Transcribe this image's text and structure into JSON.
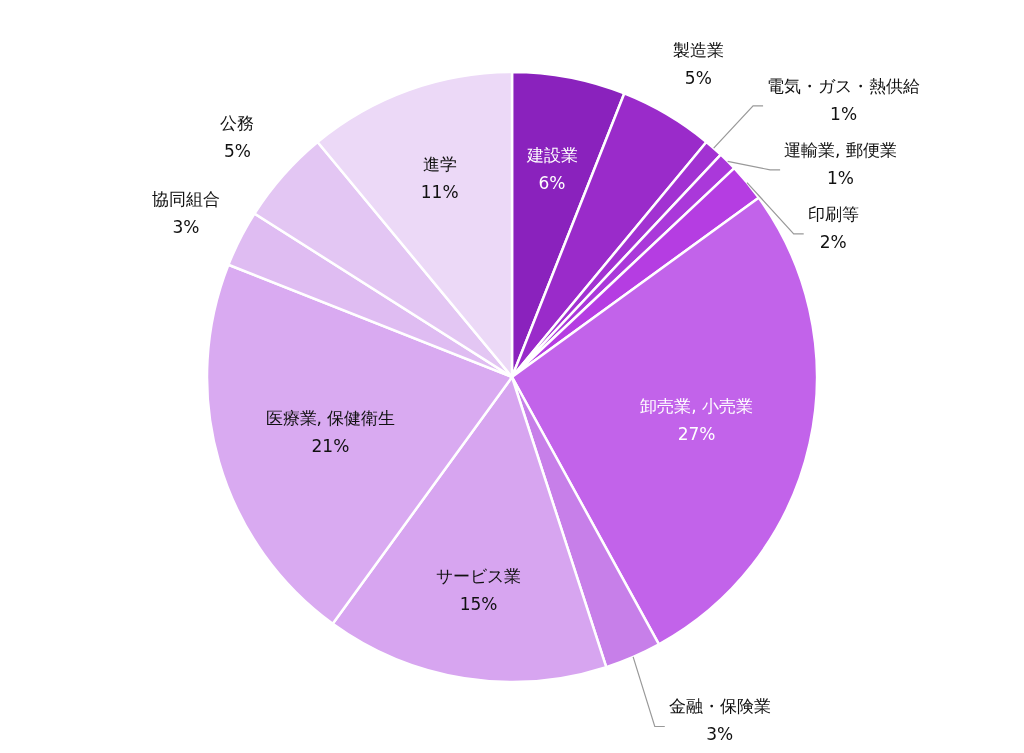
{
  "chart_data": {
    "type": "pie",
    "categories": [
      "建設業",
      "製造業",
      "電気・ガス・熱供給",
      "運輸業, 郵便業",
      "印刷等",
      "卸売業, 小売業",
      "金融・保険業",
      "サービス業",
      "医療業, 保健衛生",
      "協同組合",
      "公務",
      "進学"
    ],
    "values": [
      6,
      5,
      1,
      1,
      2,
      27,
      3,
      15,
      21,
      3,
      5,
      11
    ],
    "value_labels": [
      "6%",
      "5%",
      "1%",
      "1%",
      "2%",
      "27%",
      "3%",
      "15%",
      "21%",
      "3%",
      "5%",
      "11%"
    ],
    "colors": [
      "#8a22bd",
      "#9a2bca",
      "#a232d2",
      "#aa38da",
      "#b53de2",
      "#c263ea",
      "#c77fe9",
      "#d7a5f0",
      "#d9aaf1",
      "#dfbcf2",
      "#e3c6f3",
      "#ecd9f7"
    ]
  }
}
